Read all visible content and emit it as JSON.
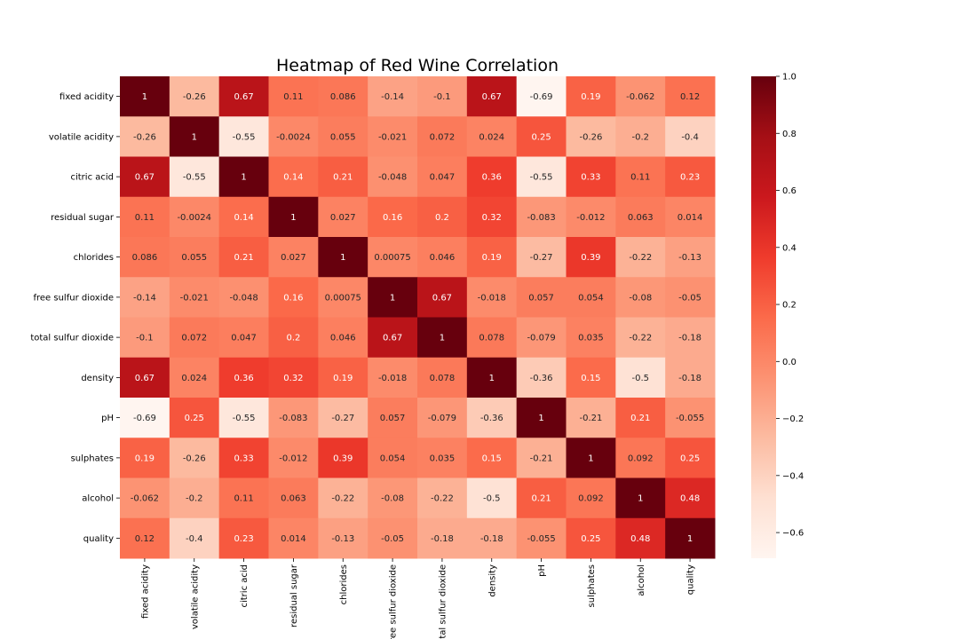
{
  "chart_data": {
    "type": "heatmap",
    "title": "Heatmap of Red Wine Correlation",
    "xlabel": "",
    "ylabel": "",
    "row_labels": [
      "fixed acidity",
      "volatile acidity",
      "citric acid",
      "residual sugar",
      "chlorides",
      "free sulfur dioxide",
      "total sulfur dioxide",
      "density",
      "pH",
      "sulphates",
      "alcohol",
      "quality"
    ],
    "col_labels": [
      "fixed acidity",
      "volatile acidity",
      "citric acid",
      "residual sugar",
      "chlorides",
      "free sulfur dioxide",
      "total sulfur dioxide",
      "density",
      "pH",
      "sulphates",
      "alcohol",
      "quality"
    ],
    "values": [
      [
        1,
        -0.26,
        0.67,
        0.11,
        0.086,
        -0.14,
        -0.1,
        0.67,
        -0.69,
        0.19,
        -0.062,
        0.12
      ],
      [
        -0.26,
        1,
        -0.55,
        -0.0024,
        0.055,
        -0.021,
        0.072,
        0.024,
        0.25,
        -0.26,
        -0.2,
        -0.4
      ],
      [
        0.67,
        -0.55,
        1,
        0.14,
        0.21,
        -0.048,
        0.047,
        0.36,
        -0.55,
        0.33,
        0.11,
        0.23
      ],
      [
        0.11,
        -0.0024,
        0.14,
        1,
        0.027,
        0.16,
        0.2,
        0.32,
        -0.083,
        -0.012,
        0.063,
        0.014
      ],
      [
        0.086,
        0.055,
        0.21,
        0.027,
        1,
        0.00075,
        0.046,
        0.19,
        -0.27,
        0.39,
        -0.22,
        -0.13
      ],
      [
        -0.14,
        -0.021,
        -0.048,
        0.16,
        0.00075,
        1,
        0.67,
        -0.018,
        0.057,
        0.054,
        -0.08,
        -0.05
      ],
      [
        -0.1,
        0.072,
        0.047,
        0.2,
        0.046,
        0.67,
        1,
        0.078,
        -0.079,
        0.035,
        -0.22,
        -0.18
      ],
      [
        0.67,
        0.024,
        0.36,
        0.32,
        0.19,
        -0.018,
        0.078,
        1,
        -0.36,
        0.15,
        -0.5,
        -0.18
      ],
      [
        -0.69,
        0.25,
        -0.55,
        -0.083,
        -0.27,
        0.057,
        -0.079,
        -0.36,
        1,
        -0.21,
        0.21,
        -0.055
      ],
      [
        0.19,
        -0.26,
        0.33,
        -0.012,
        0.39,
        0.054,
        0.035,
        0.15,
        -0.21,
        1,
        0.092,
        0.25
      ],
      [
        -0.062,
        -0.2,
        0.11,
        0.063,
        -0.22,
        -0.08,
        -0.22,
        -0.5,
        0.21,
        0.092,
        1,
        0.48
      ],
      [
        0.12,
        -0.4,
        0.23,
        0.014,
        -0.13,
        -0.05,
        -0.18,
        -0.18,
        -0.055,
        0.25,
        0.48,
        1
      ]
    ],
    "value_labels": [
      [
        "1",
        "-0.26",
        "0.67",
        "0.11",
        "0.086",
        "-0.14",
        "-0.1",
        "0.67",
        "-0.69",
        "0.19",
        "-0.062",
        "0.12"
      ],
      [
        "-0.26",
        "1",
        "-0.55",
        "-0.0024",
        "0.055",
        "-0.021",
        "0.072",
        "0.024",
        "0.25",
        "-0.26",
        "-0.2",
        "-0.4"
      ],
      [
        "0.67",
        "-0.55",
        "1",
        "0.14",
        "0.21",
        "-0.048",
        "0.047",
        "0.36",
        "-0.55",
        "0.33",
        "0.11",
        "0.23"
      ],
      [
        "0.11",
        "-0.0024",
        "0.14",
        "1",
        "0.027",
        "0.16",
        "0.2",
        "0.32",
        "-0.083",
        "-0.012",
        "0.063",
        "0.014"
      ],
      [
        "0.086",
        "0.055",
        "0.21",
        "0.027",
        "1",
        "0.00075",
        "0.046",
        "0.19",
        "-0.27",
        "0.39",
        "-0.22",
        "-0.13"
      ],
      [
        "-0.14",
        "-0.021",
        "-0.048",
        "0.16",
        "0.00075",
        "1",
        "0.67",
        "-0.018",
        "0.057",
        "0.054",
        "-0.08",
        "-0.05"
      ],
      [
        "-0.1",
        "0.072",
        "0.047",
        "0.2",
        "0.046",
        "0.67",
        "1",
        "0.078",
        "-0.079",
        "0.035",
        "-0.22",
        "-0.18"
      ],
      [
        "0.67",
        "0.024",
        "0.36",
        "0.32",
        "0.19",
        "-0.018",
        "0.078",
        "1",
        "-0.36",
        "0.15",
        "-0.5",
        "-0.18"
      ],
      [
        "-0.69",
        "0.25",
        "-0.55",
        "-0.083",
        "-0.27",
        "0.057",
        "-0.079",
        "-0.36",
        "1",
        "-0.21",
        "0.21",
        "-0.055"
      ],
      [
        "0.19",
        "-0.26",
        "0.33",
        "-0.012",
        "0.39",
        "0.054",
        "0.035",
        "0.15",
        "-0.21",
        "1",
        "0.092",
        "0.25"
      ],
      [
        "-0.062",
        "-0.2",
        "0.11",
        "0.063",
        "-0.22",
        "-0.08",
        "-0.22",
        "-0.5",
        "0.21",
        "0.092",
        "1",
        "0.48"
      ],
      [
        "0.12",
        "-0.4",
        "0.23",
        "0.014",
        "-0.13",
        "-0.05",
        "-0.18",
        "-0.18",
        "-0.055",
        "0.25",
        "0.48",
        "1"
      ]
    ],
    "colormap": "Reds",
    "vmin": -0.69,
    "vmax": 1.0,
    "colorbar_ticks": [
      "1.0",
      "0.8",
      "0.6",
      "0.4",
      "0.2",
      "0.0",
      "−0.2",
      "−0.4",
      "−0.6"
    ],
    "colorbar_tick_values": [
      1.0,
      0.8,
      0.6,
      0.4,
      0.2,
      0.0,
      -0.2,
      -0.4,
      -0.6
    ],
    "legend_placement": "right",
    "grid": false
  }
}
